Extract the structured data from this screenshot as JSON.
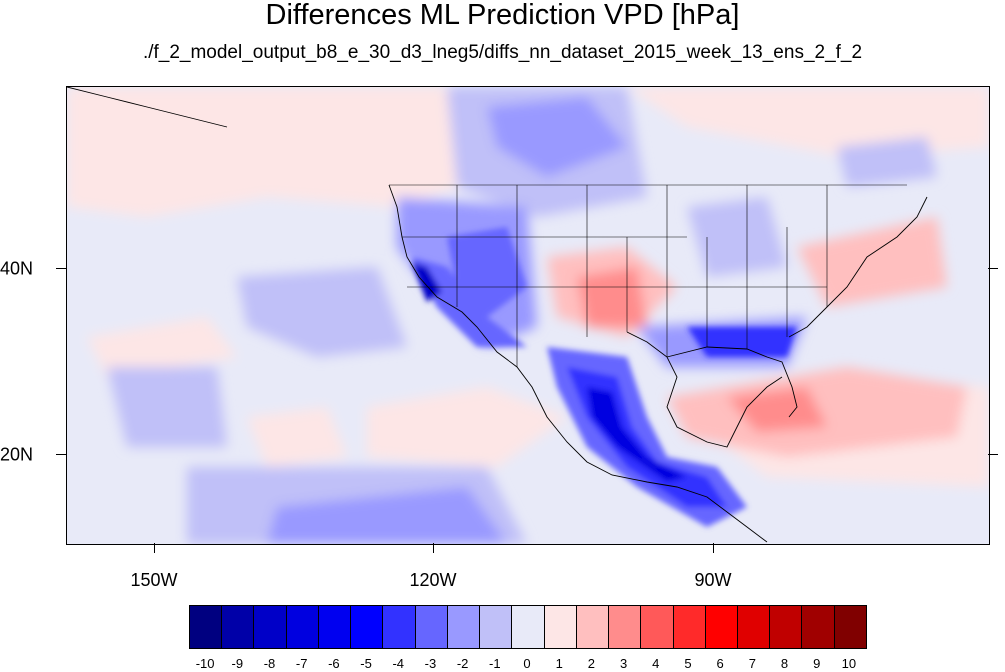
{
  "title": "Differences ML Prediction VPD [hPa]",
  "subtitle": "./f_2_model_output_b8_e_30_d3_lneg5/diffs_nn_dataset_2015_week_13_ens_2_f_2",
  "map": {
    "lon_labels": [
      "150W",
      "120W",
      "90W"
    ],
    "lat_labels": [
      "40N",
      "20N"
    ]
  },
  "colorbar": {
    "labels": [
      "-10",
      "-9",
      "-8",
      "-7",
      "-6",
      "-5",
      "-4",
      "-3",
      "-2",
      "-1",
      "0",
      "1",
      "2",
      "3",
      "4",
      "5",
      "6",
      "7",
      "8",
      "9",
      "10"
    ],
    "colors": [
      "#000080",
      "#0000a8",
      "#0000c8",
      "#0000e0",
      "#0000f0",
      "#0000ff",
      "#3232ff",
      "#6666ff",
      "#9999ff",
      "#c0c0f8",
      "#e8eaf8",
      "#fde6e6",
      "#ffbfbf",
      "#ff8c8c",
      "#ff5959",
      "#ff2a2a",
      "#ff0000",
      "#e00000",
      "#c00000",
      "#a00000",
      "#800000"
    ]
  }
}
